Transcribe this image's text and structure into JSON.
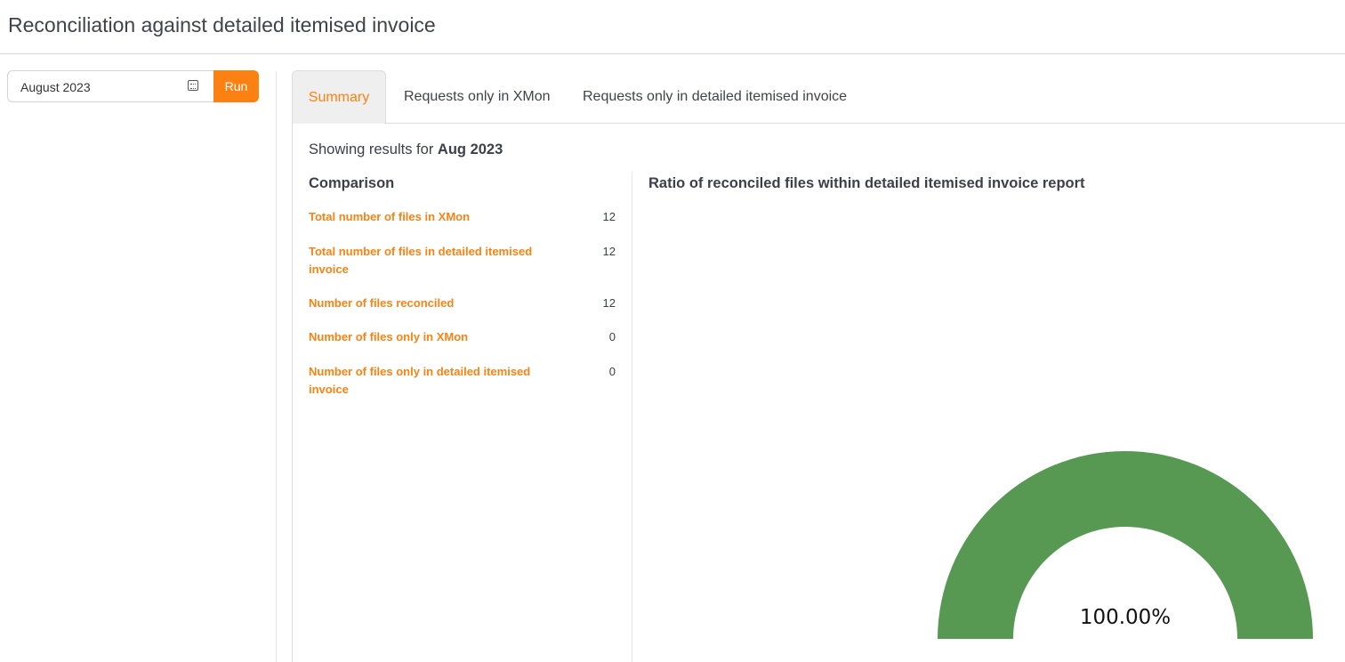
{
  "page_title": "Reconciliation against detailed itemised invoice",
  "filter": {
    "month_value": "August 2023",
    "run_label": "Run"
  },
  "tabs": [
    {
      "label": "Summary",
      "active": true
    },
    {
      "label": "Requests only in XMon"
    },
    {
      "label": "Requests only in detailed itemised invoice"
    }
  ],
  "summary": {
    "showing_prefix": "Showing results for",
    "period": "Aug 2023"
  },
  "comparison": {
    "heading": "Comparison",
    "rows": [
      {
        "label": "Total number of files in XMon",
        "value": "12"
      },
      {
        "label": "Total number of files in detailed itemised invoice",
        "value": "12"
      },
      {
        "label": "Number of files reconciled",
        "value": "12"
      },
      {
        "label": "Number of files only in XMon",
        "value": "0"
      },
      {
        "label": "Number of files only in detailed itemised invoice",
        "value": "0"
      }
    ]
  },
  "gauge": {
    "heading": "Ratio of reconciled files within detailed itemised invoice report",
    "value_percent": 100,
    "label": "100.00%",
    "color": "#579853"
  },
  "colors": {
    "accent": "#fb8212"
  }
}
